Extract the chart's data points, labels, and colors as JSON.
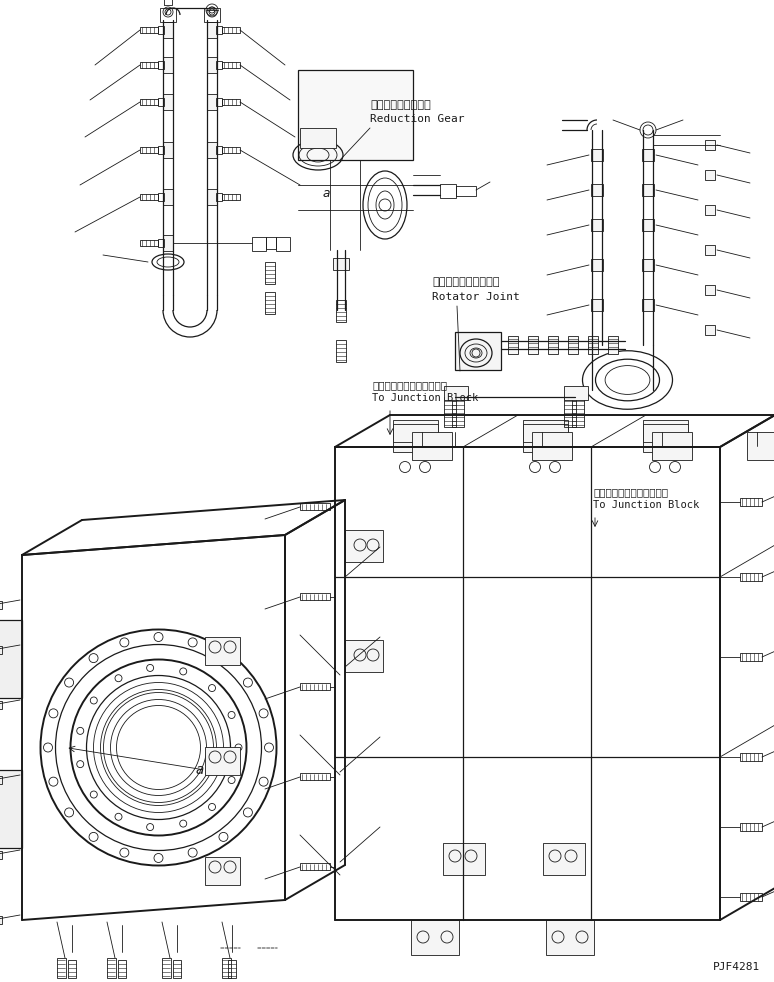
{
  "bg_color": "#ffffff",
  "line_color": "#1a1a1a",
  "part_code": "PJF4281",
  "labels": {
    "reduction_gear_jp": "リダクションギヤー",
    "reduction_gear_en": "Reduction Gear",
    "rotator_joint_jp": "ローラータジョイント",
    "rotator_joint_en": "Rotator Joint",
    "junction_block_jp1": "ジャンクションブロックへ",
    "junction_block_en1": "To Junction Block",
    "junction_block_jp2": "ジャンクションブロックへ",
    "junction_block_en2": "To Junction Block"
  },
  "fig_width": 7.74,
  "fig_height": 9.82,
  "dpi": 100
}
